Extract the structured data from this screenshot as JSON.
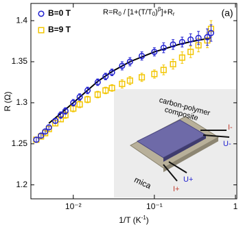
{
  "chart_data": {
    "type": "scatter",
    "panel_label": "(a)",
    "ylabel": "R (Ω)",
    "xlabel": [
      "1/T (K",
      "-1",
      ")"
    ],
    "formula": [
      "R=R",
      "0",
      " / [1+(T/T",
      "0",
      ")",
      "β",
      "]+R",
      "r"
    ],
    "log_x": true,
    "xlim": [
      0.003,
      1.04
    ],
    "ylim": [
      1.183,
      1.421
    ],
    "xticks": [
      {
        "value": 0.01,
        "label": "10⁻²"
      },
      {
        "value": 0.1,
        "label": "10⁻¹"
      },
      1
    ],
    "yticks": [
      1.2,
      1.25,
      1.3,
      1.35,
      1.4
    ],
    "legend": "upper left",
    "series": [
      {
        "name": "B=0 T",
        "color": "#1f1fd0",
        "marker": "circle",
        "x": [
          0.0035,
          0.004,
          0.0045,
          0.005,
          0.006,
          0.007,
          0.008,
          0.01,
          0.012,
          0.015,
          0.02,
          0.025,
          0.03,
          0.04,
          0.05,
          0.07,
          0.1,
          0.13,
          0.17,
          0.22,
          0.28,
          0.35,
          0.45,
          0.5
        ],
        "values": [
          1.255,
          1.26,
          1.265,
          1.27,
          1.278,
          1.285,
          1.29,
          1.3,
          1.307,
          1.315,
          1.325,
          1.332,
          1.337,
          1.345,
          1.35,
          1.357,
          1.362,
          1.367,
          1.371,
          1.374,
          1.377,
          1.379,
          1.38,
          1.385
        ],
        "errors": [
          0.003,
          0.003,
          0.003,
          0.003,
          0.003,
          0.004,
          0.004,
          0.004,
          0.004,
          0.004,
          0.004,
          0.004,
          0.004,
          0.005,
          0.005,
          0.005,
          0.005,
          0.006,
          0.006,
          0.006,
          0.007,
          0.008,
          0.01,
          0.01
        ]
      },
      {
        "name": "B=9 T",
        "color": "#f2c500",
        "marker": "square",
        "x": [
          0.0035,
          0.004,
          0.0045,
          0.005,
          0.006,
          0.007,
          0.008,
          0.01,
          0.012,
          0.015,
          0.02,
          0.025,
          0.03,
          0.04,
          0.05,
          0.07,
          0.1,
          0.13,
          0.17,
          0.22,
          0.28,
          0.35,
          0.45,
          0.5
        ],
        "values": [
          1.255,
          1.259,
          1.263,
          1.268,
          1.275,
          1.28,
          1.285,
          1.293,
          1.298,
          1.304,
          1.31,
          1.315,
          1.318,
          1.323,
          1.327,
          1.331,
          1.335,
          1.34,
          1.347,
          1.355,
          1.362,
          1.37,
          1.376,
          1.39
        ],
        "errors": [
          0.003,
          0.003,
          0.003,
          0.003,
          0.003,
          0.003,
          0.004,
          0.004,
          0.004,
          0.004,
          0.004,
          0.004,
          0.004,
          0.005,
          0.005,
          0.005,
          0.005,
          0.006,
          0.006,
          0.007,
          0.007,
          0.008,
          0.009,
          0.01
        ]
      }
    ],
    "fit": {
      "color": "#000000",
      "x": [
        0.005,
        0.007,
        0.01,
        0.02,
        0.03,
        0.05,
        0.1,
        0.2,
        0.3,
        0.5
      ],
      "values": [
        1.275,
        1.287,
        1.3,
        1.326,
        1.338,
        1.35,
        1.362,
        1.371,
        1.375,
        1.379
      ]
    },
    "inset": {
      "composite": [
        "carbon-polymer",
        "composite"
      ],
      "substrate": "mica",
      "contacts": [
        "I-",
        "U-",
        "U+",
        "I+"
      ]
    }
  }
}
